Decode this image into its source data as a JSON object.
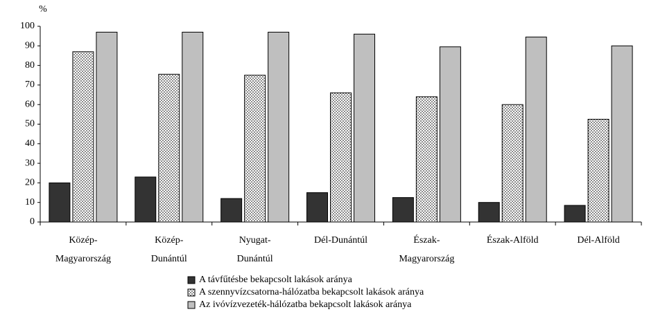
{
  "chart_data": {
    "type": "bar",
    "y_unit": "%",
    "categories": [
      [
        "Közép-",
        "Magyarország"
      ],
      [
        "Közép-",
        "Dunántúl"
      ],
      [
        "Nyugat-",
        "Dunántúl"
      ],
      [
        "Dél-Dunántúl"
      ],
      [
        "Észak-",
        "Magyarország"
      ],
      [
        "Észak-Alföld"
      ],
      [
        "Dél-Alföld"
      ]
    ],
    "series": [
      {
        "name": "A távfűtésbe bekapcsolt lakások aránya",
        "color": "#333333",
        "values": [
          20,
          23,
          12,
          15,
          12.5,
          10,
          8.5
        ]
      },
      {
        "name": "A szennyvízcsatorna-hálózatba bekapcsolt lakások aránya",
        "color": "#ffffff",
        "pattern": "dots",
        "values": [
          87,
          75.5,
          75,
          66,
          64,
          60,
          52.5
        ]
      },
      {
        "name": "Az ivóvízvezeték-hálózatba bekapcsolt lakások aránya",
        "color": "#bfbfbf",
        "values": [
          97,
          97,
          97,
          96,
          89.5,
          94.5,
          90
        ]
      }
    ],
    "ylim": [
      0,
      100
    ],
    "yticks": [
      0,
      10,
      20,
      30,
      40,
      50,
      60,
      70,
      80,
      90,
      100
    ],
    "grid": false
  }
}
